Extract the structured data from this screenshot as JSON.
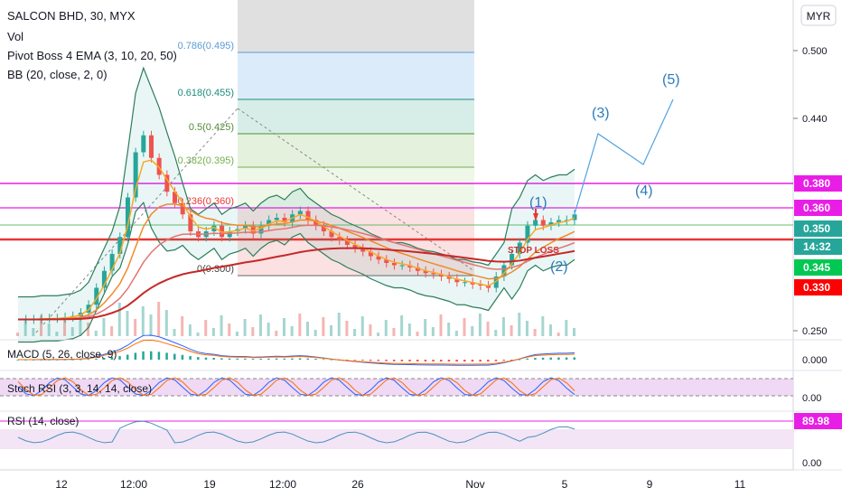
{
  "header": {
    "title": "SALCON BHD, 30, MYX",
    "vol": "Vol",
    "ema": "Pivot Boss 4 EMA (3, 10, 20, 50)",
    "bb": "BB (20, close, 2, 0)"
  },
  "currency_button": "MYR",
  "fib_levels": [
    {
      "label": "0.786(0.495)",
      "value": 0.495,
      "color": "#5b9bd5"
    },
    {
      "label": "0.618(0.455)",
      "value": 0.455,
      "color": "#1e8c7e"
    },
    {
      "label": "0.5(0.425)",
      "value": 0.425,
      "color": "#4f8d3a"
    },
    {
      "label": "0.382(0.395)",
      "value": 0.395,
      "color": "#74b04e"
    },
    {
      "label": "0.236(0.360)",
      "value": 0.36,
      "color": "#e53935"
    },
    {
      "label": "0(0.300)",
      "value": 0.3,
      "color": "#444444"
    }
  ],
  "price_ticks": [
    "0.500",
    "0.440",
    "0.250"
  ],
  "price_badges": [
    {
      "label": "0.380",
      "value": 0.38,
      "bg": "#e91ee6",
      "fg": "#ffffff"
    },
    {
      "label": "0.360",
      "value": 0.36,
      "bg": "#e91ee6",
      "fg": "#ffffff"
    },
    {
      "label": "0.350",
      "value": 0.35,
      "bg": "#26a69a",
      "fg": "#ffffff"
    },
    {
      "label": "14:32",
      "value": 0.338,
      "bg": "#26a69a",
      "fg": "#ffffff"
    },
    {
      "label": "0.345",
      "value": 0.322,
      "bg": "#00c853",
      "fg": "#ffffff"
    },
    {
      "label": "0.330",
      "value": 0.308,
      "bg": "#ff0000",
      "fg": "#ffffff"
    }
  ],
  "wave_labels": [
    "(1)",
    "(2)",
    "(3)",
    "(4)",
    "(5)"
  ],
  "stop_loss": "STOP LOSS",
  "macd": {
    "label": "MACD (5, 26, close, 9)",
    "tick": "0.000"
  },
  "stoch": {
    "label": "Stoch RSI (3, 3, 14, 14, close)",
    "tick": "0.00"
  },
  "rsi": {
    "label": "RSI (14, close)",
    "badge": "89.98"
  },
  "bottom_tick": "0.00",
  "x_axis": [
    "12",
    "12:00",
    "19",
    "12:00",
    "26",
    "Nov",
    "5",
    "9",
    "11"
  ],
  "colors": {
    "up": "#26a69a",
    "down": "#ef5350",
    "ema_red": "#d32f2f",
    "ema_orange": "#ef8a2c",
    "bb": "#2e7d5b"
  },
  "chart_data": {
    "type": "line",
    "symbol": "SALCON BHD",
    "interval": "30",
    "ylim": [
      0.25,
      0.52
    ],
    "horizontal_levels": [
      0.38,
      0.36,
      0.35,
      0.33
    ],
    "close_series": [
      0.262,
      0.262,
      0.262,
      0.263,
      0.263,
      0.263,
      0.264,
      0.265,
      0.268,
      0.275,
      0.29,
      0.305,
      0.32,
      0.335,
      0.37,
      0.41,
      0.425,
      0.405,
      0.39,
      0.375,
      0.365,
      0.355,
      0.34,
      0.335,
      0.34,
      0.345,
      0.335,
      0.34,
      0.342,
      0.345,
      0.338,
      0.345,
      0.35,
      0.352,
      0.348,
      0.355,
      0.358,
      0.35,
      0.345,
      0.34,
      0.335,
      0.332,
      0.328,
      0.325,
      0.322,
      0.318,
      0.315,
      0.312,
      0.31,
      0.31,
      0.308,
      0.305,
      0.303,
      0.302,
      0.3,
      0.298,
      0.295,
      0.295,
      0.293,
      0.292,
      0.29,
      0.3,
      0.31,
      0.32,
      0.33,
      0.345,
      0.35,
      0.345,
      0.348,
      0.35,
      0.35,
      0.355
    ],
    "elliott_projection": [
      {
        "label": "(3)",
        "value": 0.455
      },
      {
        "label": "(4)",
        "value": 0.395
      },
      {
        "label": "(5)",
        "value": 0.48
      }
    ],
    "rsi_last": 89.98
  }
}
